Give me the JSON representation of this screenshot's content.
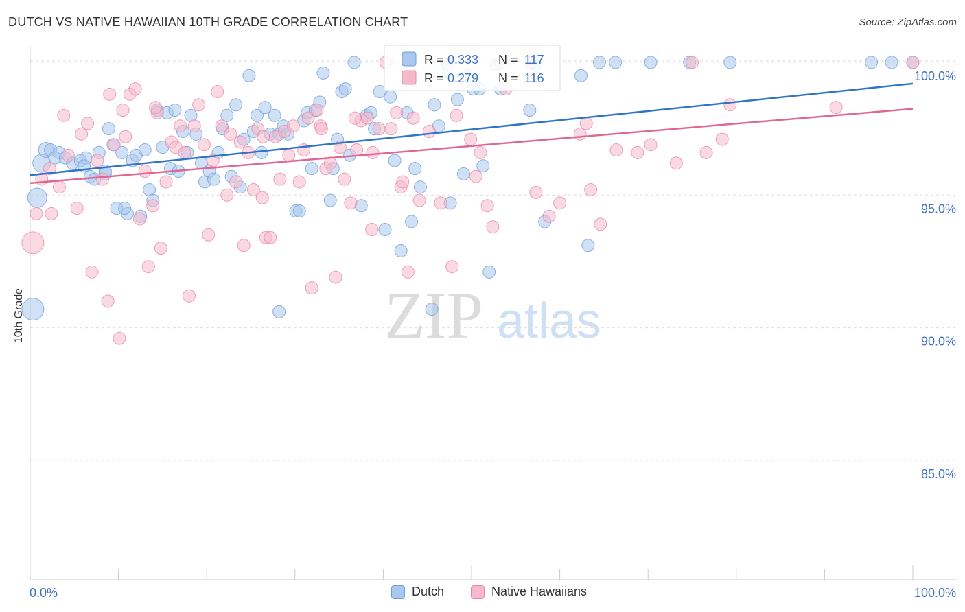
{
  "title": "DUTCH VS NATIVE HAWAIIAN 10TH GRADE CORRELATION CHART",
  "source": "Source: ZipAtlas.com",
  "watermark": {
    "zip": "ZIP",
    "atlas": "atlas"
  },
  "colors": {
    "dutch_fill": "#aac8ef",
    "dutch_stroke": "#6f9fd8",
    "dutch_line": "#2f74c9",
    "hawaiian_fill": "#f6b9cc",
    "hawaiian_stroke": "#e88aa8",
    "hawaiian_line": "#e06792",
    "value_blue": "#3d72c4",
    "grid": "#dddddd"
  },
  "legend": {
    "rows": [
      {
        "r_label": "R = ",
        "r_value": "0.333",
        "n_label": "N = ",
        "n_value": "117"
      },
      {
        "r_label": "R = ",
        "r_value": "0.279",
        "n_label": "N = ",
        "n_value": "116"
      }
    ]
  },
  "bottom_legend": {
    "dutch": "Dutch",
    "hawaiian": "Native Hawaiians"
  },
  "chart_data": {
    "type": "scatter",
    "title": "DUTCH VS NATIVE HAWAIIAN 10TH GRADE CORRELATION CHART",
    "ylabel": "10th Grade",
    "xlabel": "",
    "xlim": [
      0,
      100
    ],
    "ylim": [
      80.5,
      100.8
    ],
    "x_tick_labels": [
      "0.0%",
      "100.0%"
    ],
    "y_tick_labels": [
      "100.0%",
      "95.0%",
      "90.0%",
      "85.0%"
    ],
    "y_ticks": [
      100,
      95,
      90,
      85
    ],
    "grid": true,
    "series": [
      {
        "name": "Dutch",
        "r": 0.333,
        "n": 117,
        "trend": [
          [
            0,
            95.75
          ],
          [
            100,
            99.2
          ]
        ],
        "points": [
          [
            0.3,
            90.7,
            16
          ],
          [
            0.8,
            94.9,
            14
          ],
          [
            1.3,
            96.2,
            13
          ],
          [
            1.8,
            96.7,
            11
          ],
          [
            2.3,
            96.7,
            9
          ],
          [
            3.3,
            96.6,
            9
          ],
          [
            2.8,
            96.4,
            9
          ],
          [
            4.0,
            96.4,
            9
          ],
          [
            4.8,
            96.2,
            9
          ],
          [
            5.7,
            96.3,
            9
          ],
          [
            6.3,
            96.4,
            9
          ],
          [
            6.8,
            95.7,
            9
          ],
          [
            7.3,
            95.6,
            9
          ],
          [
            7.8,
            96.6,
            9
          ],
          [
            8.5,
            95.8,
            9
          ],
          [
            8.9,
            97.5,
            9
          ],
          [
            9.4,
            96.9,
            9
          ],
          [
            9.8,
            94.5,
            9
          ],
          [
            10.4,
            96.6,
            9
          ],
          [
            11.0,
            94.3,
            9
          ],
          [
            11.6,
            96.3,
            9
          ],
          [
            12.0,
            96.5,
            9
          ],
          [
            12.5,
            94.2,
            9
          ],
          [
            13.0,
            96.7,
            9
          ],
          [
            13.5,
            95.2,
            9
          ],
          [
            13.9,
            94.8,
            9
          ],
          [
            14.4,
            98.2,
            9
          ],
          [
            15.0,
            96.8,
            9
          ],
          [
            15.5,
            98.1,
            9
          ],
          [
            15.9,
            96.0,
            9
          ],
          [
            16.4,
            98.2,
            9
          ],
          [
            16.8,
            95.9,
            9
          ],
          [
            17.3,
            97.4,
            9
          ],
          [
            17.8,
            96.6,
            9
          ],
          [
            18.2,
            98.0,
            9
          ],
          [
            18.8,
            97.3,
            9
          ],
          [
            19.4,
            96.2,
            9
          ],
          [
            19.8,
            95.5,
            9
          ],
          [
            20.3,
            95.9,
            9
          ],
          [
            20.8,
            95.6,
            9
          ],
          [
            21.3,
            96.6,
            9
          ],
          [
            21.8,
            97.5,
            9
          ],
          [
            22.3,
            98.0,
            9
          ],
          [
            22.8,
            95.7,
            9
          ],
          [
            23.3,
            98.4,
            9
          ],
          [
            23.8,
            95.3,
            9
          ],
          [
            24.2,
            97.1,
            9
          ],
          [
            24.8,
            99.5,
            9
          ],
          [
            25.3,
            97.4,
            9
          ],
          [
            25.7,
            98.0,
            9
          ],
          [
            26.2,
            96.6,
            9
          ],
          [
            26.6,
            98.3,
            9
          ],
          [
            27.2,
            97.3,
            9
          ],
          [
            27.7,
            98.0,
            9
          ],
          [
            28.2,
            97.3,
            9
          ],
          [
            28.7,
            97.6,
            9
          ],
          [
            29.2,
            97.3,
            9
          ],
          [
            30.1,
            94.4,
            9
          ],
          [
            30.5,
            94.4,
            9
          ],
          [
            31.0,
            97.8,
            9
          ],
          [
            31.4,
            98.1,
            9
          ],
          [
            31.9,
            96.0,
            9
          ],
          [
            32.3,
            98.2,
            9
          ],
          [
            32.8,
            98.5,
            9
          ],
          [
            33.2,
            99.6,
            9
          ],
          [
            34.0,
            94.8,
            9
          ],
          [
            34.3,
            96.0,
            9
          ],
          [
            34.8,
            97.1,
            9
          ],
          [
            35.3,
            98.9,
            9
          ],
          [
            35.7,
            99.0,
            9
          ],
          [
            36.2,
            96.5,
            9
          ],
          [
            36.7,
            100.0,
            9
          ],
          [
            37.5,
            94.6,
            9
          ],
          [
            38.1,
            98.0,
            9
          ],
          [
            38.6,
            98.1,
            9
          ],
          [
            39.0,
            97.5,
            9
          ],
          [
            39.6,
            98.9,
            9
          ],
          [
            40.2,
            93.7,
            9
          ],
          [
            40.8,
            98.7,
            9
          ],
          [
            41.3,
            96.3,
            9
          ],
          [
            42.0,
            92.9,
            9
          ],
          [
            42.7,
            98.1,
            9
          ],
          [
            43.2,
            94.0,
            9
          ],
          [
            43.6,
            96.0,
            9
          ],
          [
            44.2,
            95.3,
            9
          ],
          [
            45.5,
            90.7,
            9
          ],
          [
            45.8,
            98.4,
            9
          ],
          [
            46.3,
            97.6,
            9
          ],
          [
            47.3,
            99.9,
            9
          ],
          [
            47.6,
            94.7,
            9
          ],
          [
            48.4,
            98.6,
            9
          ],
          [
            49.1,
            95.8,
            9
          ],
          [
            49.6,
            99.5,
            9
          ],
          [
            50.2,
            99.0,
            9
          ],
          [
            50.9,
            99.0,
            9
          ],
          [
            51.3,
            96.1,
            9
          ],
          [
            52.0,
            92.1,
            9
          ],
          [
            52.8,
            99.9,
            9
          ],
          [
            53.3,
            99.0,
            9
          ],
          [
            56.6,
            98.2,
            9
          ],
          [
            56.9,
            100.0,
            9
          ],
          [
            57.3,
            99.9,
            9
          ],
          [
            58.3,
            94.0,
            9
          ],
          [
            62.4,
            99.5,
            9
          ],
          [
            63.2,
            93.1,
            9
          ],
          [
            64.5,
            100.0,
            9
          ],
          [
            66.3,
            100.0,
            9
          ],
          [
            70.3,
            100.0,
            9
          ],
          [
            74.7,
            100.0,
            9
          ],
          [
            79.3,
            100.0,
            9
          ],
          [
            95.3,
            100.0,
            9
          ],
          [
            97.6,
            100.0,
            9
          ],
          [
            100.0,
            100.0,
            9
          ],
          [
            6.1,
            96.1,
            9
          ],
          [
            8.5,
            95.9,
            9
          ],
          [
            10.7,
            94.5,
            9
          ],
          [
            28.2,
            90.6,
            9
          ]
        ]
      },
      {
        "name": "Native Hawaiians",
        "r": 0.279,
        "n": 116,
        "trend": [
          [
            0,
            95.45
          ],
          [
            100,
            98.25
          ]
        ],
        "points": [
          [
            0.3,
            93.2,
            16
          ],
          [
            0.7,
            94.3,
            9
          ],
          [
            1.3,
            95.6,
            9
          ],
          [
            2.2,
            96.0,
            9
          ],
          [
            2.4,
            94.3,
            9
          ],
          [
            3.3,
            95.3,
            9
          ],
          [
            3.8,
            98.0,
            9
          ],
          [
            4.3,
            96.5,
            9
          ],
          [
            5.3,
            94.5,
            9
          ],
          [
            5.8,
            97.3,
            9
          ],
          [
            6.5,
            97.7,
            9
          ],
          [
            7.0,
            92.1,
            9
          ],
          [
            7.6,
            96.3,
            9
          ],
          [
            8.2,
            95.6,
            9
          ],
          [
            8.8,
            91.0,
            9
          ],
          [
            9.0,
            98.8,
            9
          ],
          [
            9.5,
            96.9,
            9
          ],
          [
            10.1,
            89.6,
            9
          ],
          [
            10.5,
            98.2,
            9
          ],
          [
            10.8,
            97.2,
            9
          ],
          [
            11.3,
            98.8,
            9
          ],
          [
            11.9,
            99.0,
            9
          ],
          [
            12.4,
            94.1,
            9
          ],
          [
            13.0,
            95.9,
            9
          ],
          [
            13.4,
            92.3,
            9
          ],
          [
            13.9,
            94.6,
            9
          ],
          [
            14.4,
            98.1,
            9
          ],
          [
            14.8,
            93.0,
            9
          ],
          [
            15.4,
            95.5,
            9
          ],
          [
            16.0,
            97.0,
            9
          ],
          [
            16.5,
            96.8,
            9
          ],
          [
            17.0,
            97.6,
            9
          ],
          [
            17.5,
            96.6,
            9
          ],
          [
            18.0,
            91.2,
            9
          ],
          [
            18.6,
            97.6,
            9
          ],
          [
            19.1,
            98.4,
            9
          ],
          [
            19.7,
            96.9,
            9
          ],
          [
            20.2,
            93.5,
            9
          ],
          [
            20.7,
            96.3,
            9
          ],
          [
            21.2,
            98.9,
            9
          ],
          [
            21.7,
            97.6,
            9
          ],
          [
            22.3,
            95.0,
            9
          ],
          [
            22.7,
            97.3,
            9
          ],
          [
            23.3,
            95.5,
            9
          ],
          [
            23.8,
            97.0,
            9
          ],
          [
            24.2,
            93.1,
            9
          ],
          [
            24.7,
            96.6,
            9
          ],
          [
            25.3,
            95.2,
            9
          ],
          [
            25.8,
            97.5,
            9
          ],
          [
            26.3,
            94.9,
            9
          ],
          [
            26.7,
            93.4,
            9
          ],
          [
            27.2,
            93.4,
            9
          ],
          [
            27.8,
            97.2,
            9
          ],
          [
            28.3,
            95.6,
            9
          ],
          [
            28.8,
            97.4,
            9
          ],
          [
            29.3,
            96.5,
            9
          ],
          [
            29.8,
            97.6,
            9
          ],
          [
            30.5,
            95.5,
            9
          ],
          [
            31.0,
            96.7,
            9
          ],
          [
            31.5,
            97.9,
            9
          ],
          [
            31.9,
            91.5,
            9
          ],
          [
            32.5,
            98.2,
            9
          ],
          [
            32.9,
            97.6,
            9
          ],
          [
            33.5,
            96.0,
            9
          ],
          [
            34.0,
            96.2,
            9
          ],
          [
            34.6,
            91.9,
            9
          ],
          [
            35.1,
            96.8,
            9
          ],
          [
            35.6,
            95.6,
            9
          ],
          [
            36.3,
            94.7,
            9
          ],
          [
            37.0,
            96.7,
            9
          ],
          [
            37.5,
            97.8,
            9
          ],
          [
            38.2,
            97.9,
            9
          ],
          [
            38.8,
            96.6,
            9
          ],
          [
            39.5,
            97.5,
            9
          ],
          [
            40.3,
            100.0,
            9
          ],
          [
            40.9,
            97.5,
            9
          ],
          [
            41.5,
            98.1,
            9
          ],
          [
            42.0,
            95.3,
            9
          ],
          [
            42.2,
            95.5,
            9
          ],
          [
            42.8,
            92.1,
            9
          ],
          [
            43.4,
            97.9,
            9
          ],
          [
            44.1,
            94.8,
            9
          ],
          [
            45.2,
            97.4,
            9
          ],
          [
            46.5,
            94.7,
            9
          ],
          [
            47.8,
            92.3,
            9
          ],
          [
            48.3,
            98.0,
            9
          ],
          [
            49.9,
            97.1,
            9
          ],
          [
            50.5,
            95.7,
            9
          ],
          [
            51.0,
            96.6,
            9
          ],
          [
            51.8,
            94.6,
            9
          ],
          [
            52.4,
            93.8,
            9
          ],
          [
            53.3,
            100.0,
            9
          ],
          [
            53.9,
            99.0,
            9
          ],
          [
            56.6,
            100.0,
            9
          ],
          [
            57.3,
            95.1,
            9
          ],
          [
            58.8,
            94.2,
            9
          ],
          [
            60.0,
            94.7,
            9
          ],
          [
            62.3,
            97.3,
            9
          ],
          [
            63.0,
            97.7,
            9
          ],
          [
            63.5,
            95.2,
            9
          ],
          [
            64.6,
            93.9,
            9
          ],
          [
            66.4,
            96.7,
            9
          ],
          [
            68.8,
            96.6,
            9
          ],
          [
            70.3,
            96.9,
            9
          ],
          [
            73.2,
            96.2,
            9
          ],
          [
            75.0,
            100.0,
            9
          ],
          [
            76.6,
            96.6,
            9
          ],
          [
            78.4,
            97.1,
            9
          ],
          [
            79.3,
            98.4,
            9
          ],
          [
            91.3,
            98.3,
            9
          ],
          [
            100.0,
            100.0,
            9
          ],
          [
            14.2,
            98.3,
            9
          ],
          [
            26.4,
            97.2,
            9
          ],
          [
            33.0,
            97.5,
            9
          ],
          [
            36.8,
            97.9,
            9
          ],
          [
            38.7,
            93.7,
            9
          ]
        ]
      }
    ]
  }
}
